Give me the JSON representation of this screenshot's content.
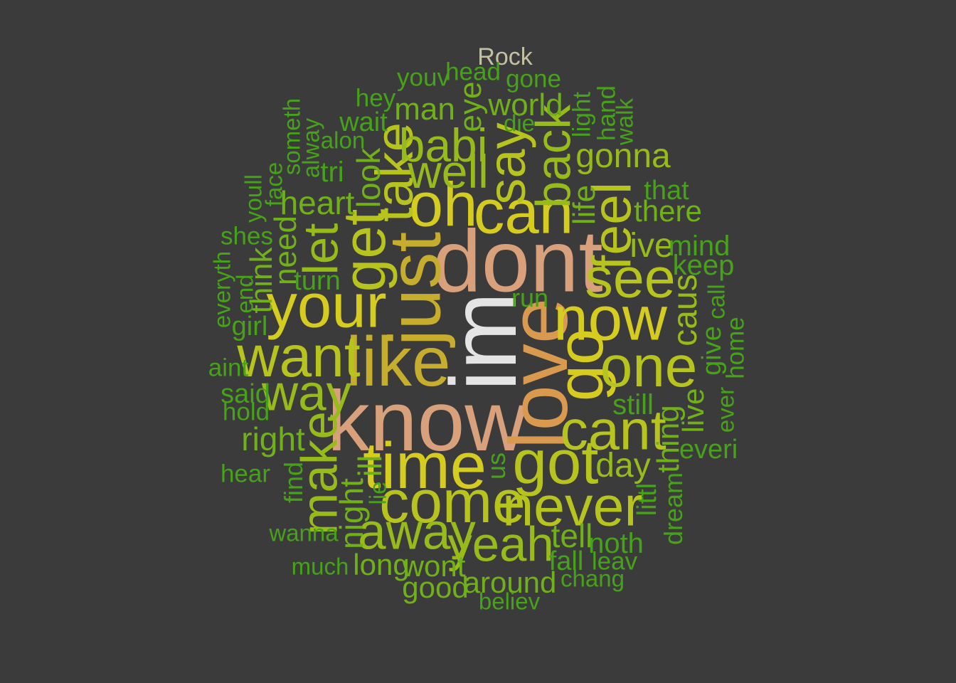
{
  "title": "Rock",
  "colors": {
    "background": "#3b3b3b",
    "title": "#c4c0a4",
    "white": "#e4e4e4",
    "salmon": "#d9a07c",
    "orange": "#d99a50",
    "gold": "#c7ad2e",
    "yellow": "#d6cc20",
    "yellowgreen": "#b8c41e",
    "lime": "#96bb1a",
    "green": "#70b018",
    "darkgreen": "#46a218"
  },
  "words": [
    {
      "text": "im",
      "weight": 1.0,
      "color": "white",
      "rotated": true
    },
    {
      "text": "dont",
      "weight": 0.93,
      "color": "salmon",
      "rotated": false
    },
    {
      "text": "know",
      "weight": 0.91,
      "color": "salmon",
      "rotated": false
    },
    {
      "text": "love",
      "weight": 0.88,
      "color": "orange",
      "rotated": true
    },
    {
      "text": "just",
      "weight": 0.78,
      "color": "gold",
      "rotated": true
    },
    {
      "text": "like",
      "weight": 0.74,
      "color": "gold",
      "rotated": false
    },
    {
      "text": "time",
      "weight": 0.7,
      "color": "yellow",
      "rotated": false
    },
    {
      "text": "go",
      "weight": 0.7,
      "color": "yellow",
      "rotated": true
    },
    {
      "text": "your",
      "weight": 0.66,
      "color": "yellow",
      "rotated": false
    },
    {
      "text": "now",
      "weight": 0.66,
      "color": "yellow",
      "rotated": false
    },
    {
      "text": "can",
      "weight": 0.66,
      "color": "yellow",
      "rotated": false
    },
    {
      "text": "oh",
      "weight": 0.66,
      "color": "yellow",
      "rotated": false
    },
    {
      "text": "got",
      "weight": 0.66,
      "color": "yellowgreen",
      "rotated": false
    },
    {
      "text": "come",
      "weight": 0.64,
      "color": "yellowgreen",
      "rotated": false
    },
    {
      "text": "get",
      "weight": 0.64,
      "color": "yellowgreen",
      "rotated": true
    },
    {
      "text": "want",
      "weight": 0.62,
      "color": "yellowgreen",
      "rotated": false
    },
    {
      "text": "one",
      "weight": 0.62,
      "color": "yellowgreen",
      "rotated": false
    },
    {
      "text": "never",
      "weight": 0.6,
      "color": "yellowgreen",
      "rotated": false
    },
    {
      "text": "see",
      "weight": 0.6,
      "color": "yellowgreen",
      "rotated": false
    },
    {
      "text": "cant",
      "weight": 0.6,
      "color": "yellowgreen",
      "rotated": false
    },
    {
      "text": "feel",
      "weight": 0.58,
      "color": "yellowgreen",
      "rotated": true
    },
    {
      "text": "say",
      "weight": 0.56,
      "color": "yellowgreen",
      "rotated": true
    },
    {
      "text": "take",
      "weight": 0.56,
      "color": "yellowgreen",
      "rotated": true
    },
    {
      "text": "away",
      "weight": 0.54,
      "color": "lime",
      "rotated": false
    },
    {
      "text": "way",
      "weight": 0.54,
      "color": "lime",
      "rotated": false
    },
    {
      "text": "make",
      "weight": 0.54,
      "color": "lime",
      "rotated": true
    },
    {
      "text": "yeah",
      "weight": 0.52,
      "color": "lime",
      "rotated": false
    },
    {
      "text": "back",
      "weight": 0.52,
      "color": "lime",
      "rotated": true
    },
    {
      "text": "let",
      "weight": 0.52,
      "color": "lime",
      "rotated": true
    },
    {
      "text": "well",
      "weight": 0.5,
      "color": "lime",
      "rotated": false
    },
    {
      "text": "babi",
      "weight": 0.5,
      "color": "lime",
      "rotated": false
    },
    {
      "text": "gonna",
      "weight": 0.48,
      "color": "lime",
      "rotated": false
    },
    {
      "text": "day",
      "weight": 0.48,
      "color": "lime",
      "rotated": false
    },
    {
      "text": "ive",
      "weight": 0.48,
      "color": "lime",
      "rotated": false
    },
    {
      "text": "caus",
      "weight": 0.48,
      "color": "lime",
      "rotated": true
    },
    {
      "text": "right",
      "weight": 0.46,
      "color": "green",
      "rotated": false
    },
    {
      "text": "heart",
      "weight": 0.46,
      "color": "green",
      "rotated": false
    },
    {
      "text": "tell",
      "weight": 0.46,
      "color": "green",
      "rotated": false
    },
    {
      "text": "look",
      "weight": 0.46,
      "color": "green",
      "rotated": true
    },
    {
      "text": "night",
      "weight": 0.46,
      "color": "green",
      "rotated": true
    },
    {
      "text": "ill",
      "weight": 0.46,
      "color": "green",
      "rotated": true
    },
    {
      "text": "need",
      "weight": 0.44,
      "color": "green",
      "rotated": true
    },
    {
      "text": "think",
      "weight": 0.44,
      "color": "green",
      "rotated": true
    },
    {
      "text": "world",
      "weight": 0.44,
      "color": "green",
      "rotated": false
    },
    {
      "text": "man",
      "weight": 0.44,
      "color": "green",
      "rotated": false
    },
    {
      "text": "eye",
      "weight": 0.44,
      "color": "green",
      "rotated": true
    },
    {
      "text": "life",
      "weight": 0.44,
      "color": "green",
      "rotated": true
    },
    {
      "text": "thing",
      "weight": 0.44,
      "color": "green",
      "rotated": true
    },
    {
      "text": "there",
      "weight": 0.42,
      "color": "green",
      "rotated": false
    },
    {
      "text": "long",
      "weight": 0.42,
      "color": "green",
      "rotated": false
    },
    {
      "text": "wont",
      "weight": 0.42,
      "color": "green",
      "rotated": false
    },
    {
      "text": "good",
      "weight": 0.42,
      "color": "green",
      "rotated": false
    },
    {
      "text": "around",
      "weight": 0.42,
      "color": "green",
      "rotated": false
    },
    {
      "text": "live",
      "weight": 0.42,
      "color": "green",
      "rotated": true
    },
    {
      "text": "still",
      "weight": 0.4,
      "color": "darkgreen",
      "rotated": false
    },
    {
      "text": "tri",
      "weight": 0.4,
      "color": "darkgreen",
      "rotated": false
    },
    {
      "text": "mind",
      "weight": 0.4,
      "color": "darkgreen",
      "rotated": false
    },
    {
      "text": "keep",
      "weight": 0.4,
      "color": "darkgreen",
      "rotated": false
    },
    {
      "text": "noth",
      "weight": 0.4,
      "color": "darkgreen",
      "rotated": false
    },
    {
      "text": "said",
      "weight": 0.38,
      "color": "darkgreen",
      "rotated": false
    },
    {
      "text": "fall",
      "weight": 0.38,
      "color": "darkgreen",
      "rotated": false
    },
    {
      "text": "girl",
      "weight": 0.38,
      "color": "darkgreen",
      "rotated": false
    },
    {
      "text": "everi",
      "weight": 0.38,
      "color": "darkgreen",
      "rotated": false
    },
    {
      "text": "wait",
      "weight": 0.38,
      "color": "darkgreen",
      "rotated": false
    },
    {
      "text": "that",
      "weight": 0.38,
      "color": "darkgreen",
      "rotated": false
    },
    {
      "text": "turn",
      "weight": 0.38,
      "color": "darkgreen",
      "rotated": false
    },
    {
      "text": "give",
      "weight": 0.38,
      "color": "darkgreen",
      "rotated": true
    },
    {
      "text": "littl",
      "weight": 0.38,
      "color": "darkgreen",
      "rotated": true
    },
    {
      "text": "find",
      "weight": 0.36,
      "color": "darkgreen",
      "rotated": true
    },
    {
      "text": "dream",
      "weight": 0.36,
      "color": "darkgreen",
      "rotated": true
    },
    {
      "text": "us",
      "weight": 0.36,
      "color": "darkgreen",
      "rotated": true
    },
    {
      "text": "run",
      "weight": 0.36,
      "color": "darkgreen",
      "rotated": false
    },
    {
      "text": "aint",
      "weight": 0.35,
      "color": "darkgreen",
      "rotated": false
    },
    {
      "text": "hold",
      "weight": 0.35,
      "color": "darkgreen",
      "rotated": false
    },
    {
      "text": "hear",
      "weight": 0.35,
      "color": "darkgreen",
      "rotated": false
    },
    {
      "text": "shes",
      "weight": 0.35,
      "color": "darkgreen",
      "rotated": false
    },
    {
      "text": "leav",
      "weight": 0.35,
      "color": "darkgreen",
      "rotated": false
    },
    {
      "text": "gone",
      "weight": 0.35,
      "color": "darkgreen",
      "rotated": false
    },
    {
      "text": "hey",
      "weight": 0.35,
      "color": "darkgreen",
      "rotated": false
    },
    {
      "text": "youv",
      "weight": 0.35,
      "color": "darkgreen",
      "rotated": false
    },
    {
      "text": "head",
      "weight": 0.35,
      "color": "darkgreen",
      "rotated": false
    },
    {
      "text": "light",
      "weight": 0.35,
      "color": "darkgreen",
      "rotated": true
    },
    {
      "text": "hand",
      "weight": 0.35,
      "color": "darkgreen",
      "rotated": true
    },
    {
      "text": "home",
      "weight": 0.35,
      "color": "darkgreen",
      "rotated": true
    },
    {
      "text": "ever",
      "weight": 0.33,
      "color": "darkgreen",
      "rotated": true
    },
    {
      "text": "end",
      "weight": 0.33,
      "color": "darkgreen",
      "rotated": true
    },
    {
      "text": "wanna",
      "weight": 0.33,
      "color": "darkgreen",
      "rotated": false
    },
    {
      "text": "much",
      "weight": 0.33,
      "color": "darkgreen",
      "rotated": false
    },
    {
      "text": "believ",
      "weight": 0.33,
      "color": "darkgreen",
      "rotated": false
    },
    {
      "text": "chang",
      "weight": 0.33,
      "color": "darkgreen",
      "rotated": false
    },
    {
      "text": "alon",
      "weight": 0.33,
      "color": "darkgreen",
      "rotated": false
    },
    {
      "text": "die",
      "weight": 0.33,
      "color": "darkgreen",
      "rotated": false
    },
    {
      "text": "walk",
      "weight": 0.33,
      "color": "darkgreen",
      "rotated": true
    },
    {
      "text": "call",
      "weight": 0.33,
      "color": "darkgreen",
      "rotated": true
    },
    {
      "text": "everyth",
      "weight": 0.33,
      "color": "darkgreen",
      "rotated": true
    },
    {
      "text": "youll",
      "weight": 0.33,
      "color": "darkgreen",
      "rotated": true
    },
    {
      "text": "face",
      "weight": 0.33,
      "color": "darkgreen",
      "rotated": true
    },
    {
      "text": "someth",
      "weight": 0.33,
      "color": "darkgreen",
      "rotated": true
    },
    {
      "text": "alway",
      "weight": 0.33,
      "color": "darkgreen",
      "rotated": true
    },
    {
      "text": "lie",
      "weight": 0.33,
      "color": "darkgreen",
      "rotated": true
    }
  ]
}
